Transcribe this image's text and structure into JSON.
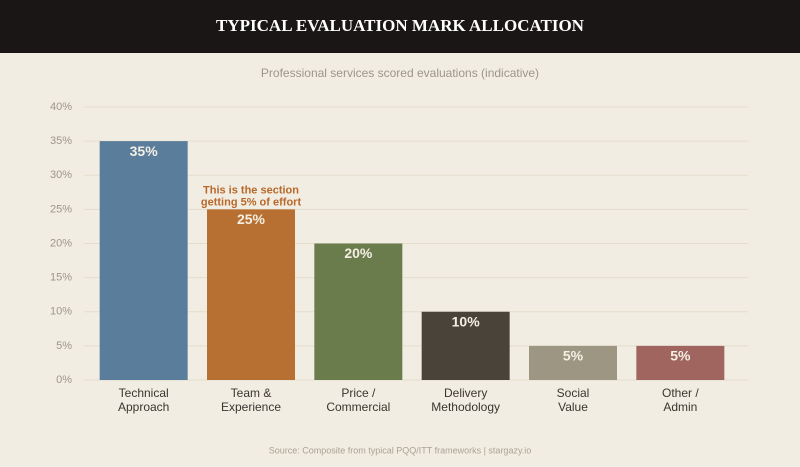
{
  "chart_data": {
    "type": "bar",
    "title": "TYPICAL EVALUATION MARK ALLOCATION",
    "subtitle": "Professional services scored evaluations (indicative)",
    "categories": [
      [
        "Technical",
        "Approach"
      ],
      [
        "Team &",
        "Experience"
      ],
      [
        "Price /",
        "Commercial"
      ],
      [
        "Delivery",
        "Methodology"
      ],
      [
        "Social",
        "Value"
      ],
      [
        "Other /",
        "Admin"
      ]
    ],
    "values": [
      35,
      25,
      20,
      10,
      5,
      5
    ],
    "value_labels": [
      "35%",
      "25%",
      "20%",
      "10%",
      "5%",
      "5%"
    ],
    "colors": [
      "#5b7d9c",
      "#b87032",
      "#6a7c4c",
      "#4a4339",
      "#9d9682",
      "#a0655f"
    ],
    "ylim": [
      0,
      40
    ],
    "yticks": [
      {
        "value": 0,
        "label": "0%"
      },
      {
        "value": 5,
        "label": "5%"
      },
      {
        "value": 10,
        "label": "10%"
      },
      {
        "value": 15,
        "label": "15%"
      },
      {
        "value": 20,
        "label": "20%"
      },
      {
        "value": 25,
        "label": "25%"
      },
      {
        "value": 30,
        "label": "30%"
      },
      {
        "value": 35,
        "label": "35%"
      },
      {
        "value": 40,
        "label": "40%"
      }
    ],
    "grid": true,
    "annotation": {
      "category_index": 1,
      "lines": [
        "This is the section",
        "getting 5% of effort"
      ],
      "color": "#b8682a"
    },
    "source": "Source: Composite from typical PQQ/ITT frameworks  |  stargazy.io"
  }
}
